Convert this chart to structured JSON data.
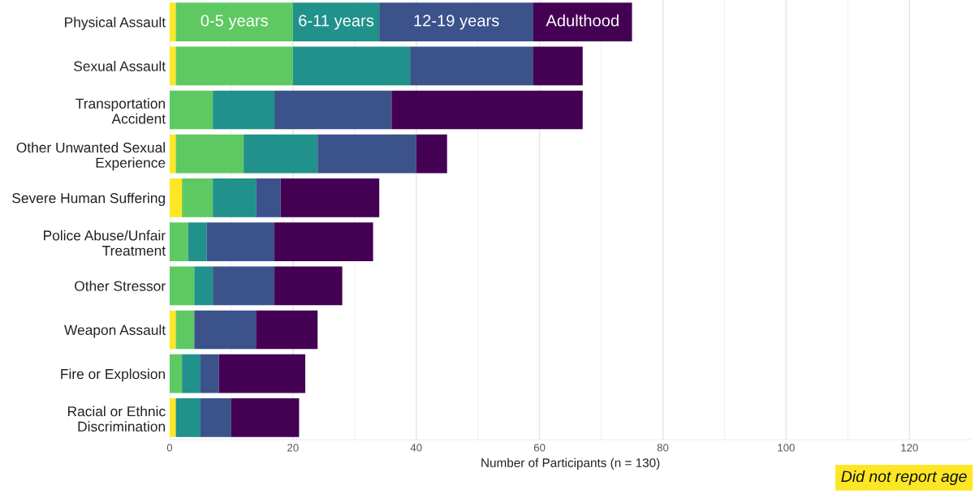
{
  "chart_data": {
    "type": "bar",
    "orientation": "horizontal",
    "stacked": true,
    "xlabel": "Number of Participants (n = 130)",
    "categories": [
      "Physical Assault",
      "Sexual Assault",
      "Transportation\nAccident",
      "Other Unwanted Sexual\nExperience",
      "Severe Human Suffering",
      "Police Abuse/Unfair\nTreatment",
      "Other Stressor",
      "Weapon Assault",
      "Fire or Explosion",
      "Racial or Ethnic\nDiscrimination"
    ],
    "series": [
      {
        "name": "Did not report age",
        "color": "#fde725",
        "values": [
          1,
          1,
          0,
          1,
          2,
          0,
          0,
          1,
          0,
          1
        ]
      },
      {
        "name": "0-5 years",
        "color": "#5ec962",
        "values": [
          19,
          19,
          7,
          11,
          5,
          3,
          4,
          3,
          2,
          0
        ]
      },
      {
        "name": "6-11 years",
        "color": "#21918c",
        "values": [
          14,
          19,
          10,
          12,
          7,
          3,
          3,
          0,
          3,
          4
        ]
      },
      {
        "name": "12-19 years",
        "color": "#3b528b",
        "values": [
          25,
          20,
          19,
          16,
          4,
          11,
          10,
          10,
          3,
          5
        ]
      },
      {
        "name": "Adulthood",
        "color": "#440154",
        "values": [
          16,
          8,
          31,
          5,
          16,
          16,
          11,
          10,
          14,
          11
        ]
      }
    ],
    "xlim": [
      0,
      130
    ],
    "xticks": [
      0,
      20,
      40,
      60,
      80,
      100,
      120
    ],
    "grid": "x",
    "legend": "bottom right"
  }
}
